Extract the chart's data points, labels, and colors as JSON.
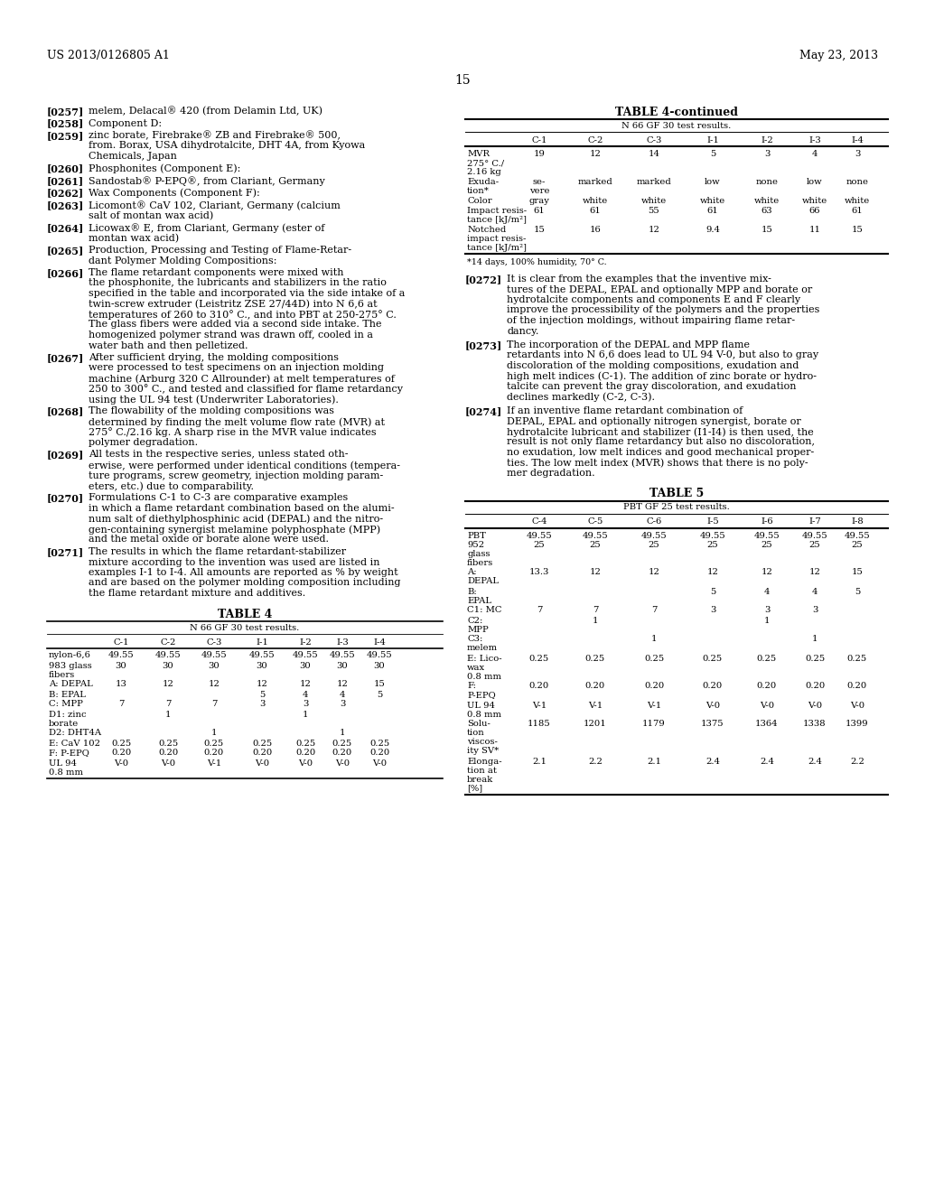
{
  "bg_color": "#ffffff",
  "header_left": "US 2013/0126805 A1",
  "header_right": "May 23, 2013",
  "page_number": "15",
  "left_paragraphs": [
    {
      "tag": "[0257]",
      "text": "melem, Delacal® 420 (from Delamin Ltd, UK)"
    },
    {
      "tag": "[0258]",
      "text": "Component D:"
    },
    {
      "tag": "[0259]",
      "text": "zinc borate, Firebrake® ZB and Firebrake® 500,\nfrom. Borax, USA dihydrotalcite, DHT 4A, from Kyowa\nChemicals, Japan"
    },
    {
      "tag": "[0260]",
      "text": "Phosphonites (Component E):"
    },
    {
      "tag": "[0261]",
      "text": "Sandostab® P-EPQ®, from Clariant, Germany"
    },
    {
      "tag": "[0262]",
      "text": "Wax Components (Component F):"
    },
    {
      "tag": "[0263]",
      "text": "Licomont® CaV 102, Clariant, Germany (calcium\nsalt of montan wax acid)"
    },
    {
      "tag": "[0264]",
      "text": "Licowax® E, from Clariant, Germany (ester of\nmontan wax acid)"
    },
    {
      "tag": "[0265]",
      "text": "Production, Processing and Testing of Flame-Retar-\ndant Polymer Molding Compositions:"
    },
    {
      "tag": "[0266]",
      "text": "The flame retardant components were mixed with\nthe phosphonite, the lubricants and stabilizers in the ratio\nspecified in the table and incorporated via the side intake of a\ntwin-screw extruder (Leistritz ZSE 27/44D) into N 6,6 at\ntemperatures of 260 to 310° C., and into PBT at 250-275° C.\nThe glass fibers were added via a second side intake. The\nhomogenized polymer strand was drawn off, cooled in a\nwater bath and then pelletized."
    },
    {
      "tag": "[0267]",
      "text": "After sufficient drying, the molding compositions\nwere processed to test specimens on an injection molding\nmachine (Arburg 320 C Allrounder) at melt temperatures of\n250 to 300° C., and tested and classified for flame retardancy\nusing the UL 94 test (Underwriter Laboratories)."
    },
    {
      "tag": "[0268]",
      "text": "The flowability of the molding compositions was\ndetermined by finding the melt volume flow rate (MVR) at\n275° C./2.16 kg. A sharp rise in the MVR value indicates\npolymer degradation."
    },
    {
      "tag": "[0269]",
      "text": "All tests in the respective series, unless stated oth-\nerwise, were performed under identical conditions (tempera-\nture programs, screw geometry, injection molding param-\neters, etc.) due to comparability."
    },
    {
      "tag": "[0270]",
      "text": "Formulations C-1 to C-3 are comparative examples\nin which a flame retardant combination based on the alumi-\nnum salt of diethylphosphinic acid (DEPAL) and the nitro-\ngen-containing synergist melamine polyphosphate (MPP)\nand the metal oxide or borate alone were used."
    },
    {
      "tag": "[0271]",
      "text": "The results in which the flame retardant-stabilizer\nmixture according to the invention was used are listed in\nexamples I-1 to I-4. All amounts are reported as % by weight\nand are based on the polymer molding composition including\nthe flame retardant mixture and additives."
    }
  ],
  "table4_title": "TABLE 4",
  "table4_subtitle": "N 66 GF 30 test results.",
  "table4_cols": [
    "",
    "C-1",
    "C-2",
    "C-3",
    "I-1",
    "I-2",
    "I-3",
    "I-4"
  ],
  "table4_rows": [
    [
      "nylon-6,6",
      "49.55",
      "49.55",
      "49.55",
      "49.55",
      "49.55",
      "49.55",
      "49.55"
    ],
    [
      "983 glass\nfibers",
      "30",
      "30",
      "30",
      "30",
      "30",
      "30",
      "30"
    ],
    [
      "A: DEPAL",
      "13",
      "12",
      "12",
      "12",
      "12",
      "12",
      "15"
    ],
    [
      "B: EPAL",
      "",
      "",
      "",
      "5",
      "4",
      "4",
      "5"
    ],
    [
      "C: MPP",
      "7",
      "7",
      "7",
      "3",
      "3",
      "3",
      ""
    ],
    [
      "D1: zinc\nborate",
      "",
      "1",
      "",
      "",
      "1",
      "",
      ""
    ],
    [
      "D2: DHT4A",
      "",
      "",
      "1",
      "",
      "",
      "1",
      ""
    ],
    [
      "E: CaV 102",
      "0.25",
      "0.25",
      "0.25",
      "0.25",
      "0.25",
      "0.25",
      "0.25"
    ],
    [
      "F: P-EPQ",
      "0.20",
      "0.20",
      "0.20",
      "0.20",
      "0.20",
      "0.20",
      "0.20"
    ],
    [
      "UL 94\n0.8 mm",
      "V-0",
      "V-0",
      "V-1",
      "V-0",
      "V-0",
      "V-0",
      "V-0"
    ]
  ],
  "table4cont_title": "TABLE 4-continued",
  "table4cont_subtitle": "N 66 GF 30 test results.",
  "table4cont_cols": [
    "",
    "C-1",
    "C-2",
    "C-3",
    "I-1",
    "I-2",
    "I-3",
    "I-4"
  ],
  "table4cont_rows": [
    [
      "MVR\n275° C./\n2.16 kg",
      "19",
      "12",
      "14",
      "5",
      "3",
      "4",
      "3"
    ],
    [
      "Exuda-\ntion*",
      "se-\nvere",
      "marked",
      "marked",
      "low",
      "none",
      "low",
      "none"
    ],
    [
      "Color",
      "gray",
      "white",
      "white",
      "white",
      "white",
      "white",
      "white"
    ],
    [
      "Impact resis-\ntance [kJ/m²]",
      "61",
      "61",
      "55",
      "61",
      "63",
      "66",
      "61"
    ],
    [
      "Notched\nimpact resis-\ntance [kJ/m²]",
      "15",
      "16",
      "12",
      "9.4",
      "15",
      "11",
      "15"
    ]
  ],
  "table4cont_footnote": "*14 days, 100% humidity, 70° C.",
  "right_paragraphs": [
    {
      "tag": "[0272]",
      "text": "It is clear from the examples that the inventive mix-\ntures of the DEPAL, EPAL and optionally MPP and borate or\nhydrotalcite components and components E and F clearly\nimprove the processibility of the polymers and the properties\nof the injection moldings, without impairing flame retar-\ndancy."
    },
    {
      "tag": "[0273]",
      "text": "The incorporation of the DEPAL and MPP flame\nretardants into N 6,6 does lead to UL 94 V-0, but also to gray\ndiscoloration of the molding compositions, exudation and\nhigh melt indices (C-1). The addition of zinc borate or hydro-\ntalcite can prevent the gray discoloration, and exudation\ndeclines markedly (C-2, C-3)."
    },
    {
      "tag": "[0274]",
      "text": "If an inventive flame retardant combination of\nDEPAL, EPAL and optionally nitrogen synergist, borate or\nhydrotalcite lubricant and stabilizer (I1-I4) is then used, the\nresult is not only flame retardancy but also no discoloration,\nno exudation, low melt indices and good mechanical proper-\nties. The low melt index (MVR) shows that there is no poly-\nmer degradation."
    }
  ],
  "table5_title": "TABLE 5",
  "table5_subtitle": "PBT GF 25 test results.",
  "table5_cols": [
    "",
    "C-4",
    "C-5",
    "C-6",
    "I-5",
    "I-6",
    "I-7",
    "I-8"
  ],
  "table5_rows": [
    [
      "PBT\n952\nglass\nfibers",
      "49.55\n25",
      "49.55\n25",
      "49.55\n25",
      "49.55\n25",
      "49.55\n25",
      "49.55\n25",
      "49.55\n25"
    ],
    [
      "A:\nDEPAL",
      "13.3",
      "12",
      "12",
      "12",
      "12",
      "12",
      "15"
    ],
    [
      "B:\nEPAL",
      "",
      "",
      "",
      "5",
      "4",
      "4",
      "5"
    ],
    [
      "C1: MC",
      "7",
      "7",
      "7",
      "3",
      "3",
      "3",
      ""
    ],
    [
      "C2:\nMPP",
      "",
      "1",
      "",
      "",
      "1",
      "",
      ""
    ],
    [
      "C3:\nmelem",
      "",
      "",
      "1",
      "",
      "",
      "1",
      ""
    ],
    [
      "E: Lico-\nwax\n0.8 mm",
      "0.25",
      "0.25",
      "0.25",
      "0.25",
      "0.25",
      "0.25",
      "0.25"
    ],
    [
      "F:\nP-EPQ",
      "0.20",
      "0.20",
      "0.20",
      "0.20",
      "0.20",
      "0.20",
      "0.20"
    ],
    [
      "UL 94\n0.8 mm",
      "V-1",
      "V-1",
      "V-1",
      "V-0",
      "V-0",
      "V-0",
      "V-0"
    ],
    [
      "Solu-\ntion\nviscos-\nity SV*",
      "1185",
      "1201",
      "1179",
      "1375",
      "1364",
      "1338",
      "1399"
    ],
    [
      "Elonga-\ntion at\nbreak\n[%]",
      "2.1",
      "2.2",
      "2.1",
      "2.4",
      "2.4",
      "2.4",
      "2.2"
    ]
  ]
}
